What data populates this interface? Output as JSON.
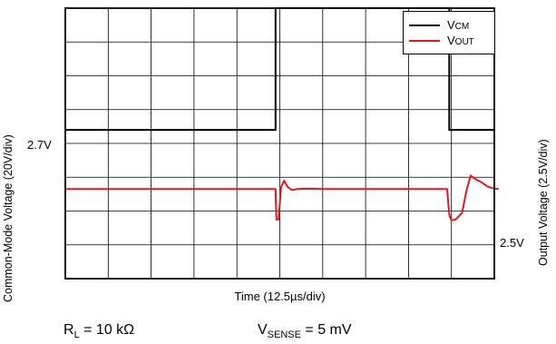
{
  "chart_data": {
    "type": "line",
    "xlabel": "Time (12.5µs/div)",
    "ylabel_left": "Common-Mode Voltage (20V/div)",
    "ylabel_right": "Output Voltage (2.5V/div)",
    "x_divisions": 10,
    "y_divisions": 8,
    "grid": true,
    "legend_placement": "top-right",
    "level_labels": {
      "vcm_low": "2.7V",
      "vout_base": "2.5V"
    },
    "series": [
      {
        "name": "V",
        "name_sub": "CM",
        "color": "#000000",
        "x": [
          0,
          4.9,
          4.9,
          8.95,
          8.95,
          10
        ],
        "y": [
          4.4,
          4.4,
          8.0,
          8.0,
          4.4,
          4.4
        ]
      },
      {
        "name": "V",
        "name_sub": "OUT",
        "color": "#e8161b",
        "x": [
          0,
          4.9,
          4.92,
          4.97,
          5.03,
          5.1,
          5.18,
          5.28,
          5.4,
          5.6,
          6.0,
          8.9,
          8.95,
          9.0,
          9.1,
          9.25,
          9.35,
          9.45,
          9.55,
          9.7,
          9.85,
          10.0,
          10.1
        ],
        "y": [
          2.65,
          2.65,
          1.75,
          1.75,
          2.7,
          2.9,
          2.72,
          2.62,
          2.65,
          2.66,
          2.65,
          2.65,
          1.9,
          1.72,
          1.75,
          1.95,
          2.6,
          3.05,
          2.95,
          2.85,
          2.72,
          2.66,
          2.65
        ]
      }
    ]
  },
  "conditions": [
    {
      "base": "R",
      "sub": "L",
      "rest": " = 10 kΩ"
    },
    {
      "base": "V",
      "sub": "SENSE",
      "rest": " = 5 mV"
    }
  ]
}
